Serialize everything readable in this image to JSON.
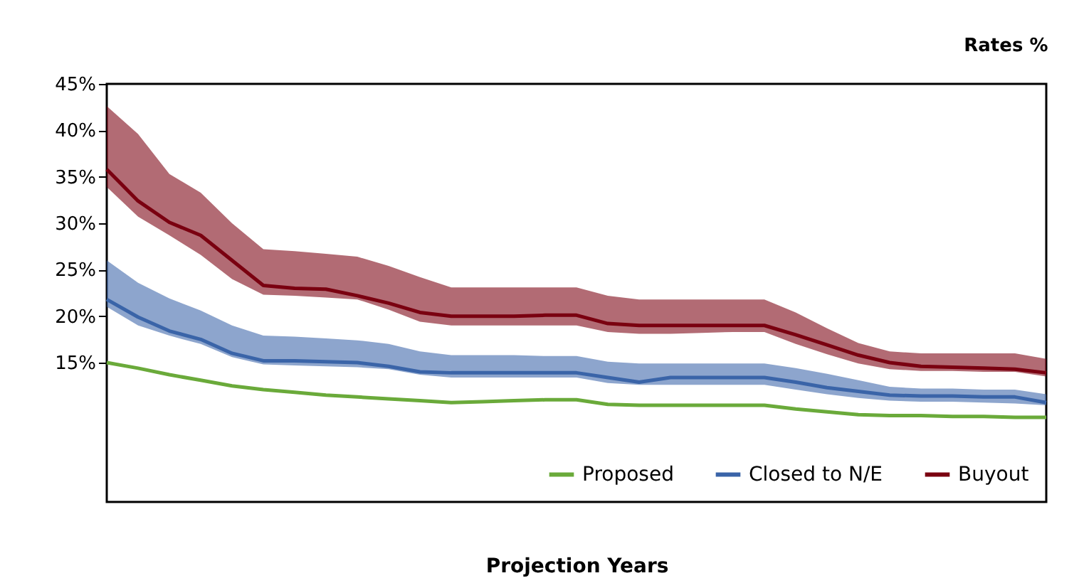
{
  "chart_data": {
    "type": "line",
    "ylabel": "Rates %",
    "xlabel": "Projection Years",
    "categories": [
      null,
      null,
      null,
      null,
      null,
      null,
      null,
      null,
      null,
      null,
      null,
      null,
      null,
      null,
      null,
      null,
      null,
      null,
      null,
      null,
      null,
      null,
      null,
      null,
      null,
      null,
      null,
      null,
      null,
      null,
      null
    ],
    "series": [
      {
        "name": "Proposed",
        "color": "#6aaa3a",
        "values": [
          15.0,
          14.4,
          13.7,
          13.1,
          12.5,
          12.1,
          11.8,
          11.5,
          11.3,
          11.1,
          10.9,
          10.7,
          10.8,
          10.9,
          11.0,
          11.0,
          10.5,
          10.4,
          10.4,
          10.4,
          10.4,
          10.4,
          10.0,
          9.7,
          9.4,
          9.3,
          9.3,
          9.2,
          9.2,
          9.1,
          9.1
        ]
      },
      {
        "name": "Closed to N/E",
        "color": "#3a64a8",
        "values": [
          21.8,
          19.9,
          18.4,
          17.5,
          16.0,
          15.2,
          15.2,
          15.1,
          15.0,
          14.6,
          14.0,
          13.9,
          13.9,
          13.9,
          13.9,
          13.9,
          13.4,
          12.9,
          13.4,
          13.4,
          13.4,
          13.4,
          12.9,
          12.3,
          11.9,
          11.5,
          11.4,
          11.4,
          11.3,
          11.3,
          10.7
        ],
        "lower": [
          21.0,
          19.0,
          17.9,
          17.0,
          15.6,
          14.8,
          14.7,
          14.6,
          14.5,
          14.3,
          13.7,
          13.4,
          13.4,
          13.4,
          13.4,
          13.4,
          12.8,
          12.6,
          12.6,
          12.6,
          12.6,
          12.6,
          12.1,
          11.6,
          11.2,
          10.9,
          10.8,
          10.8,
          10.7,
          10.6,
          10.4
        ],
        "upper": [
          26.0,
          23.6,
          21.9,
          20.6,
          19.0,
          17.9,
          17.8,
          17.6,
          17.4,
          17.0,
          16.2,
          15.8,
          15.8,
          15.8,
          15.7,
          15.7,
          15.1,
          14.9,
          14.9,
          14.9,
          14.9,
          14.9,
          14.4,
          13.8,
          13.1,
          12.4,
          12.2,
          12.2,
          12.1,
          12.1,
          11.6
        ]
      },
      {
        "name": "Buyout",
        "color": "#7a0010",
        "values": [
          35.8,
          32.4,
          30.1,
          28.7,
          26.0,
          23.3,
          23.0,
          22.9,
          22.2,
          21.4,
          20.4,
          20.0,
          20.0,
          20.0,
          20.1,
          20.1,
          19.2,
          19.0,
          19.0,
          19.0,
          19.0,
          19.0,
          18.0,
          16.9,
          15.8,
          15.0,
          14.6,
          14.5,
          14.4,
          14.3,
          13.9
        ],
        "lower": [
          33.9,
          30.7,
          28.7,
          26.6,
          24.0,
          22.3,
          22.2,
          22.0,
          21.8,
          20.7,
          19.4,
          19.0,
          19.0,
          19.0,
          19.0,
          19.0,
          18.3,
          18.1,
          18.1,
          18.2,
          18.3,
          18.3,
          17.0,
          15.9,
          14.9,
          14.3,
          14.1,
          14.1,
          14.0,
          14.0,
          13.5
        ],
        "upper": [
          42.6,
          39.6,
          35.3,
          33.3,
          30.0,
          27.2,
          27.0,
          26.7,
          26.4,
          25.4,
          24.2,
          23.1,
          23.1,
          23.1,
          23.1,
          23.1,
          22.2,
          21.8,
          21.8,
          21.8,
          21.8,
          21.8,
          20.4,
          18.7,
          17.1,
          16.2,
          16.0,
          16.0,
          16.0,
          16.0,
          15.4
        ]
      }
    ],
    "ylim": [
      0,
      45
    ],
    "yticks": [
      {
        "value": 15,
        "label": "15%"
      },
      {
        "value": 20,
        "label": "20%"
      },
      {
        "value": 25,
        "label": "25%"
      },
      {
        "value": 30,
        "label": "30%"
      },
      {
        "value": 35,
        "label": "35%"
      },
      {
        "value": 40,
        "label": "40%"
      },
      {
        "value": 45,
        "label": "45%"
      }
    ],
    "tick_labels": "y",
    "grid": false,
    "legend": "bottom right",
    "marker": "none",
    "line_style": "solid"
  }
}
